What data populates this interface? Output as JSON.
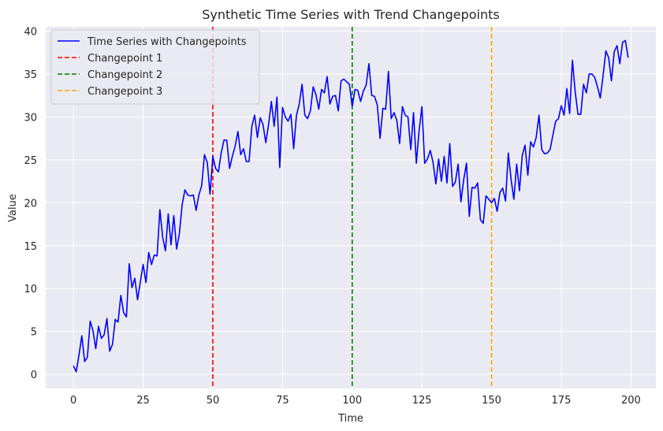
{
  "chart_data": {
    "type": "line",
    "title": "Synthetic Time Series with Trend Changepoints",
    "xlabel": "Time",
    "ylabel": "Value",
    "xlim": [
      -9.95,
      208.95
    ],
    "ylim": [
      -1.64,
      40.5
    ],
    "xticks": [
      0,
      25,
      50,
      75,
      100,
      125,
      150,
      175,
      200
    ],
    "yticks": [
      0,
      5,
      10,
      15,
      20,
      25,
      30,
      35,
      40
    ],
    "grid": true,
    "legend_position": "top-left",
    "series": [
      {
        "name": "Time Series with Changepoints",
        "color": "#0000ff",
        "style": "solid",
        "x": [
          0,
          1,
          2,
          3,
          4,
          5,
          6,
          7,
          8,
          9,
          10,
          11,
          12,
          13,
          14,
          15,
          16,
          17,
          18,
          19,
          20,
          21,
          22,
          23,
          24,
          25,
          26,
          27,
          28,
          29,
          30,
          31,
          32,
          33,
          34,
          35,
          36,
          37,
          38,
          39,
          40,
          41,
          42,
          43,
          44,
          45,
          46,
          47,
          48,
          49,
          50,
          51,
          52,
          53,
          54,
          55,
          56,
          57,
          58,
          59,
          60,
          61,
          62,
          63,
          64,
          65,
          66,
          67,
          68,
          69,
          70,
          71,
          72,
          73,
          74,
          75,
          76,
          77,
          78,
          79,
          80,
          81,
          82,
          83,
          84,
          85,
          86,
          87,
          88,
          89,
          90,
          91,
          92,
          93,
          94,
          95,
          96,
          97,
          98,
          99,
          100,
          101,
          102,
          103,
          104,
          105,
          106,
          107,
          108,
          109,
          110,
          111,
          112,
          113,
          114,
          115,
          116,
          117,
          118,
          119,
          120,
          121,
          122,
          123,
          124,
          125,
          126,
          127,
          128,
          129,
          130,
          131,
          132,
          133,
          134,
          135,
          136,
          137,
          138,
          139,
          140,
          141,
          142,
          143,
          144,
          145,
          146,
          147,
          148,
          149,
          150,
          151,
          152,
          153,
          154,
          155,
          156,
          157,
          158,
          159,
          160,
          161,
          162,
          163,
          164,
          165,
          166,
          167,
          168,
          169,
          170,
          171,
          172,
          173,
          174,
          175,
          176,
          177,
          178,
          179,
          180,
          181,
          182,
          183,
          184,
          185,
          186,
          187,
          188,
          189,
          190,
          191,
          192,
          193,
          194,
          195,
          196,
          197,
          198,
          199
        ],
        "y": [
          1.0,
          0.3,
          2.3,
          4.5,
          1.5,
          2.0,
          6.2,
          5.1,
          3.0,
          5.6,
          4.2,
          4.6,
          6.5,
          2.7,
          3.5,
          6.4,
          6.1,
          9.2,
          7.2,
          6.7,
          12.9,
          10.1,
          11.2,
          8.7,
          10.8,
          12.8,
          10.7,
          14.2,
          12.8,
          13.9,
          13.8,
          19.2,
          16.0,
          14.4,
          18.7,
          15.1,
          18.5,
          14.6,
          16.4,
          19.8,
          21.5,
          20.9,
          20.8,
          20.9,
          19.1,
          20.9,
          22.0,
          25.6,
          24.7,
          21.0,
          25.4,
          24.0,
          23.6,
          25.8,
          27.3,
          27.3,
          24.0,
          25.4,
          26.6,
          28.3,
          25.6,
          26.3,
          24.8,
          24.8,
          28.9,
          30.2,
          27.6,
          29.9,
          29.1,
          27.0,
          29.1,
          31.8,
          28.9,
          32.3,
          24.1,
          31.1,
          30.0,
          29.5,
          30.3,
          26.3,
          30.2,
          31.5,
          33.8,
          30.2,
          29.8,
          30.7,
          33.5,
          32.6,
          30.9,
          33.2,
          32.8,
          34.7,
          31.5,
          32.4,
          32.5,
          30.7,
          34.2,
          34.4,
          34.1,
          33.8,
          31.2,
          33.2,
          33.1,
          31.8,
          33.0,
          33.7,
          36.2,
          32.5,
          32.4,
          31.4,
          27.5,
          31.0,
          30.9,
          35.3,
          29.8,
          30.5,
          29.6,
          26.9,
          31.2,
          30.2,
          30.0,
          26.2,
          30.5,
          24.6,
          28.4,
          31.2,
          24.6,
          25.1,
          26.1,
          24.7,
          22.2,
          25.1,
          22.5,
          25.4,
          22.3,
          26.9,
          21.9,
          22.4,
          24.5,
          20.1,
          22.7,
          24.6,
          18.4,
          21.8,
          21.7,
          22.3,
          18.0,
          17.6,
          20.8,
          20.4,
          20.0,
          20.5,
          19.0,
          21.2,
          21.7,
          20.2,
          25.8,
          22.7,
          20.4,
          24.5,
          21.4,
          25.5,
          26.7,
          23.2,
          27.1,
          26.5,
          27.6,
          30.2,
          26.2,
          25.7,
          25.8,
          26.2,
          27.9,
          29.5,
          29.8,
          31.3,
          30.2,
          33.3,
          30.4,
          36.6,
          32.9,
          30.3,
          30.3,
          33.8,
          32.8,
          35.0,
          35.0,
          34.6,
          33.5,
          32.2,
          34.8,
          37.7,
          36.9,
          34.2,
          37.6,
          38.3,
          36.2,
          38.7,
          38.9,
          36.9
        ]
      },
      {
        "name": "Changepoint 1",
        "color": "#ff0000",
        "style": "dashed",
        "x_value": 50
      },
      {
        "name": "Changepoint 2",
        "color": "#008000",
        "style": "dashed",
        "x_value": 100
      },
      {
        "name": "Changepoint 3",
        "color": "#ffa500",
        "style": "dashed",
        "x_value": 150
      }
    ]
  },
  "colors": {
    "plot_background": "#eaeaf2",
    "grid": "#ffffff",
    "text": "#262626"
  }
}
